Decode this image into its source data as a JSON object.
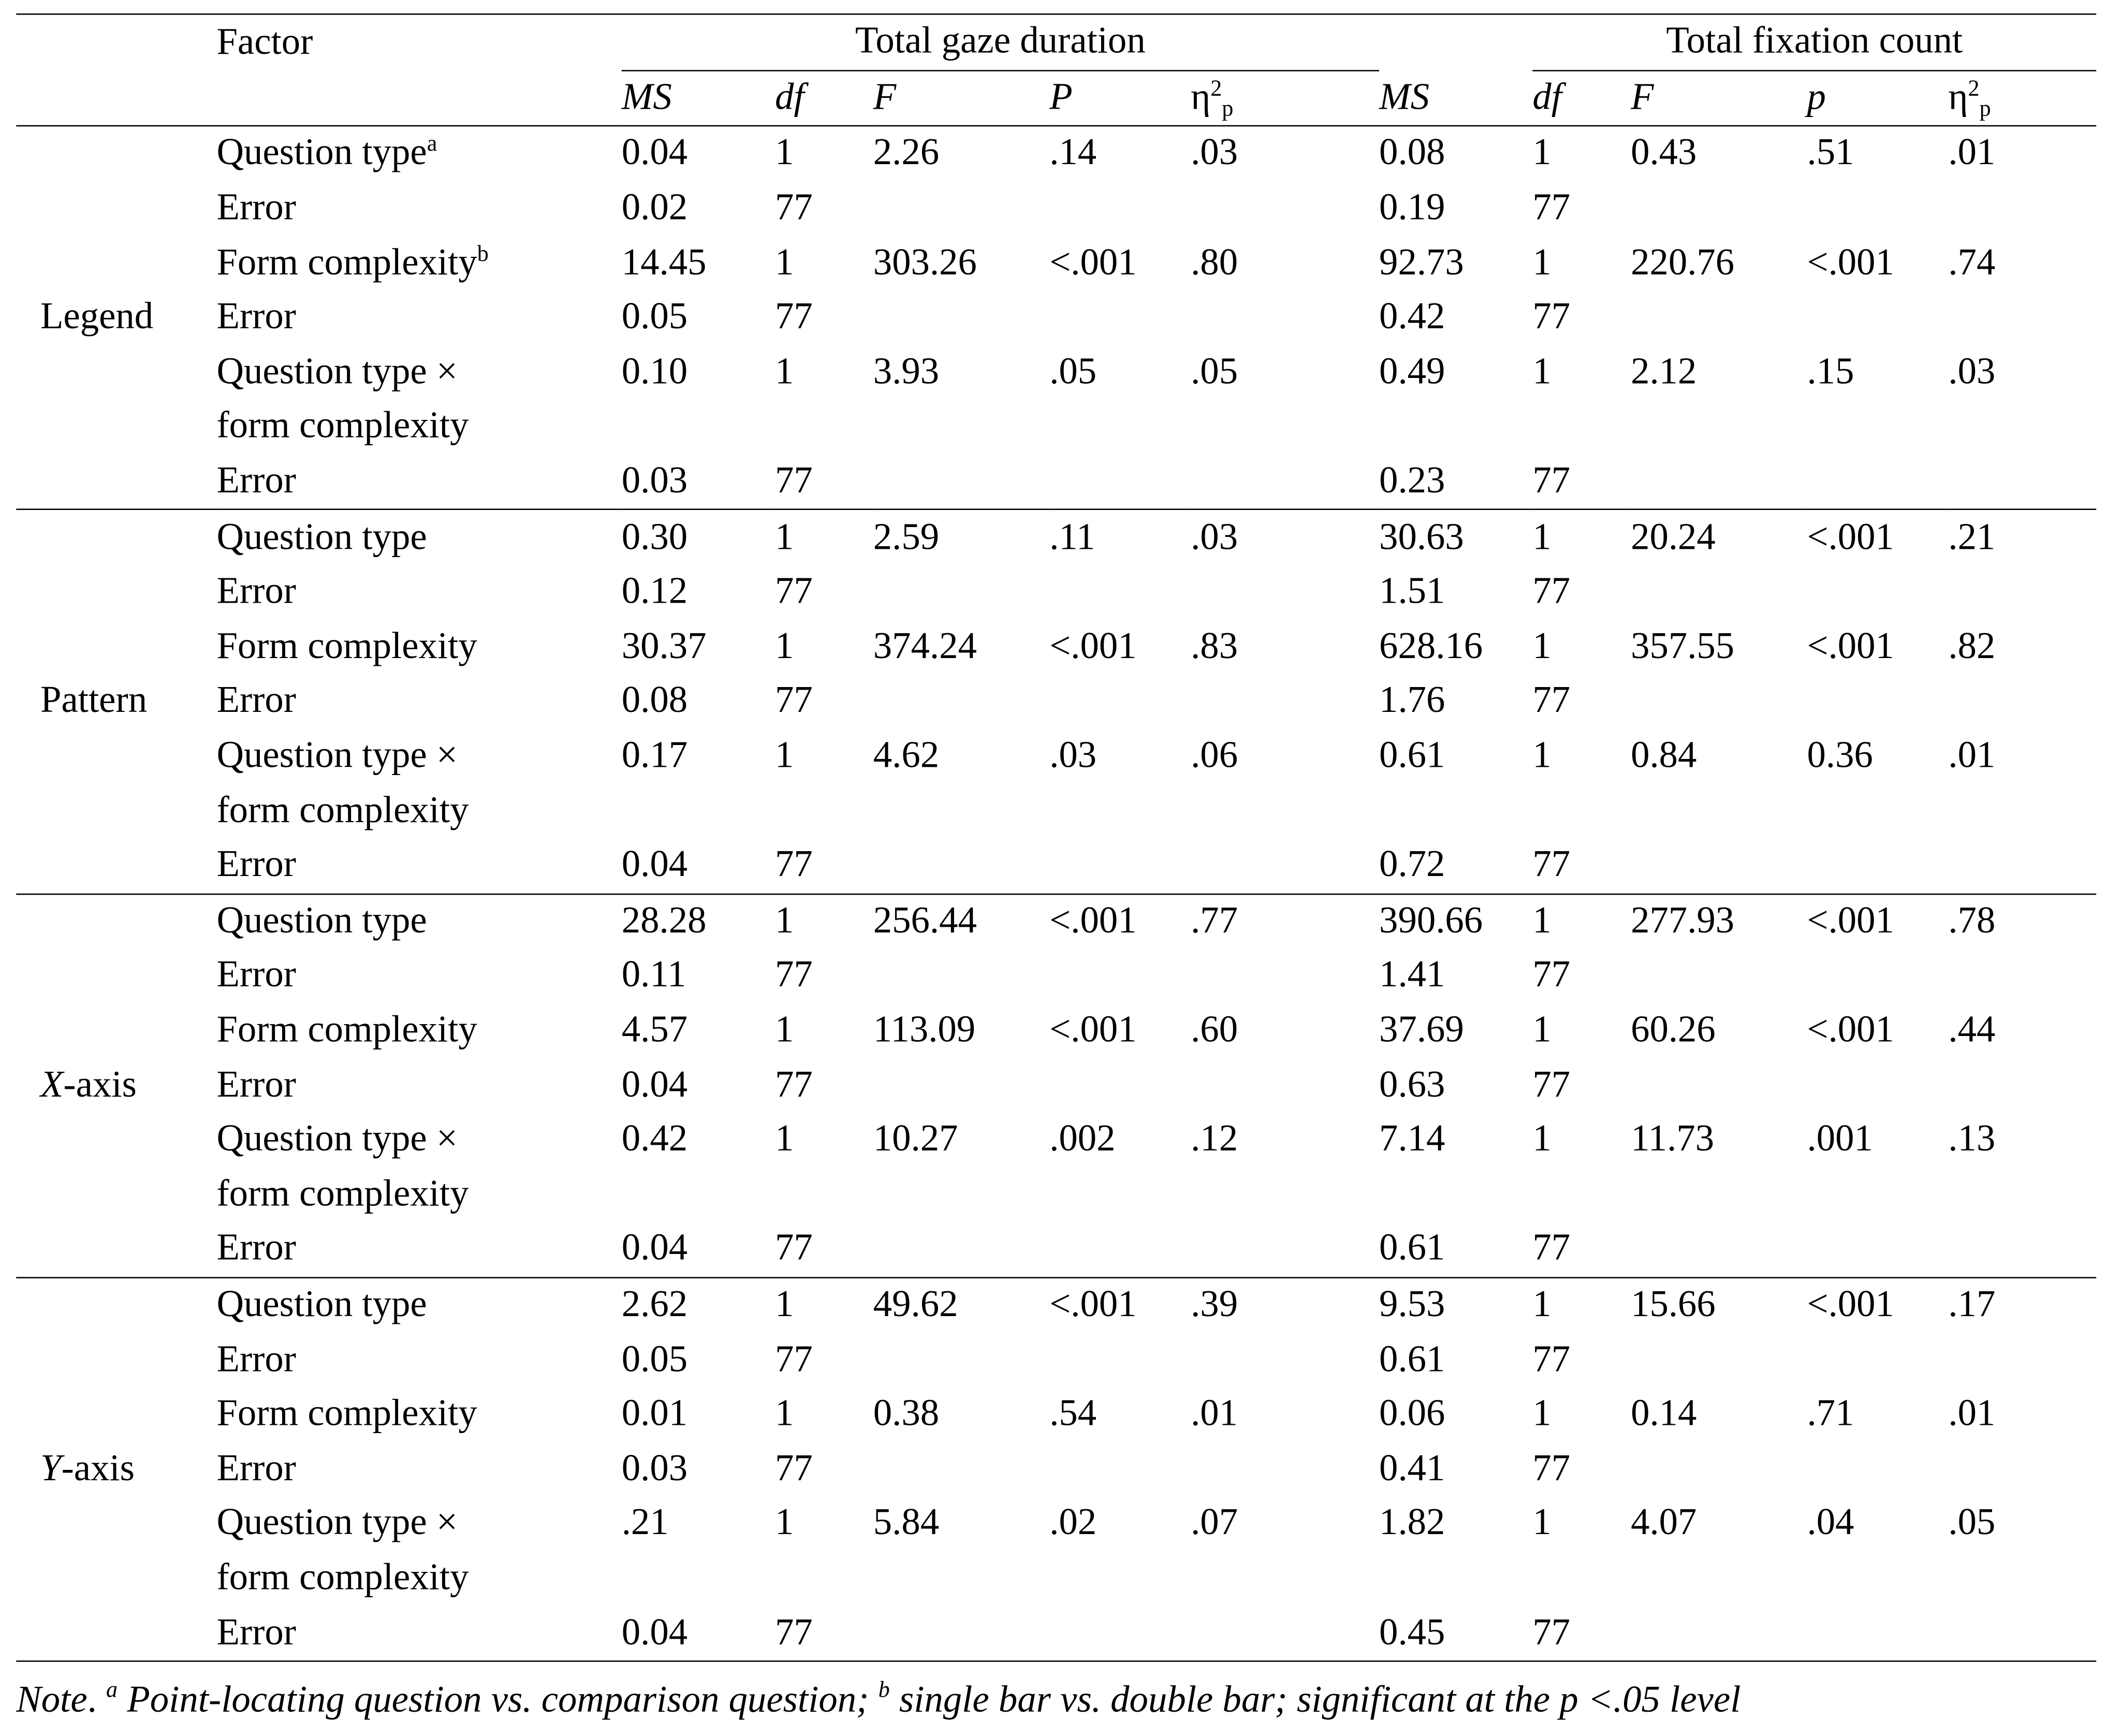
{
  "header": {
    "factor_label": "Factor",
    "gaze_title": "Total gaze duration",
    "fix_title": "Total fixation count",
    "gaze_cols": {
      "ms": "MS",
      "df": "df",
      "f": "F",
      "p": "P",
      "eta": "η",
      "eta_sup": "2",
      "eta_sub": "p"
    },
    "fix_cols": {
      "ms": "MS",
      "df": "df",
      "f": "F",
      "p": "p",
      "eta": "η",
      "eta_sup": "2",
      "eta_sub": "p"
    }
  },
  "groups": [
    {
      "name": "Legend",
      "rows": [
        {
          "factor": "Question type",
          "sup": "a",
          "g": [
            "0.04",
            "1",
            "2.26",
            ".14",
            ".03"
          ],
          "f": [
            "0.08",
            "1",
            "0.43",
            ".51",
            ".01"
          ]
        },
        {
          "factor": "Error",
          "sup": "",
          "g": [
            "0.02",
            "77",
            "",
            "",
            ""
          ],
          "f": [
            "0.19",
            "77",
            "",
            "",
            ""
          ]
        },
        {
          "factor": "Form complexity",
          "sup": "b",
          "g": [
            "14.45",
            "1",
            "303.26",
            "<.001",
            ".80"
          ],
          "f": [
            "92.73",
            "1",
            "220.76",
            "<.001",
            ".74"
          ]
        },
        {
          "factor": "Error",
          "sup": "",
          "g": [
            "0.05",
            "77",
            "",
            "",
            ""
          ],
          "f": [
            "0.42",
            "77",
            "",
            "",
            ""
          ]
        },
        {
          "factor": "Question type ×",
          "sup": "",
          "g": [
            "0.10",
            "1",
            "3.93",
            ".05",
            ".05"
          ],
          "f": [
            "0.49",
            "1",
            "2.12",
            ".15",
            ".03"
          ]
        },
        {
          "factor": "form complexity",
          "sup": "",
          "g": [
            "",
            "",
            "",
            "",
            ""
          ],
          "f": [
            "",
            "",
            "",
            "",
            ""
          ]
        },
        {
          "factor": "Error",
          "sup": "",
          "g": [
            "0.03",
            "77",
            "",
            "",
            ""
          ],
          "f": [
            "0.23",
            "77",
            "",
            "",
            ""
          ]
        }
      ]
    },
    {
      "name": "Pattern",
      "rows": [
        {
          "factor": "Question type",
          "sup": "",
          "g": [
            "0.30",
            "1",
            "2.59",
            ".11",
            ".03"
          ],
          "f": [
            "30.63",
            "1",
            "20.24",
            "<.001",
            ".21"
          ]
        },
        {
          "factor": "Error",
          "sup": "",
          "g": [
            "0.12",
            "77",
            "",
            "",
            ""
          ],
          "f": [
            "1.51",
            "77",
            "",
            "",
            ""
          ]
        },
        {
          "factor": "Form complexity",
          "sup": "",
          "g": [
            "30.37",
            "1",
            "374.24",
            "<.001",
            ".83"
          ],
          "f": [
            "628.16",
            "1",
            "357.55",
            "<.001",
            ".82"
          ]
        },
        {
          "factor": "Error",
          "sup": "",
          "g": [
            "0.08",
            "77",
            "",
            "",
            ""
          ],
          "f": [
            "1.76",
            "77",
            "",
            "",
            ""
          ]
        },
        {
          "factor": "Question type ×",
          "sup": "",
          "g": [
            "0.17",
            "1",
            "4.62",
            ".03",
            ".06"
          ],
          "f": [
            "0.61",
            "1",
            "0.84",
            "0.36",
            ".01"
          ]
        },
        {
          "factor": "form complexity",
          "sup": "",
          "g": [
            "",
            "",
            "",
            "",
            ""
          ],
          "f": [
            "",
            "",
            "",
            "",
            ""
          ]
        },
        {
          "factor": "Error",
          "sup": "",
          "g": [
            "0.04",
            "77",
            "",
            "",
            ""
          ],
          "f": [
            "0.72",
            "77",
            "",
            "",
            ""
          ]
        }
      ]
    },
    {
      "name_letter": "X",
      "name_rest": "-axis",
      "rows": [
        {
          "factor": "Question type",
          "sup": "",
          "g": [
            "28.28",
            "1",
            "256.44",
            "<.001",
            ".77"
          ],
          "f": [
            "390.66",
            "1",
            "277.93",
            "<.001",
            ".78"
          ]
        },
        {
          "factor": "Error",
          "sup": "",
          "g": [
            "0.11",
            "77",
            "",
            "",
            ""
          ],
          "f": [
            "1.41",
            "77",
            "",
            "",
            ""
          ]
        },
        {
          "factor": "Form complexity",
          "sup": "",
          "g": [
            "4.57",
            "1",
            "113.09",
            "<.001",
            ".60"
          ],
          "f": [
            "37.69",
            "1",
            "60.26",
            "<.001",
            ".44"
          ]
        },
        {
          "factor": "Error",
          "sup": "",
          "g": [
            "0.04",
            "77",
            "",
            "",
            ""
          ],
          "f": [
            "0.63",
            "77",
            "",
            "",
            ""
          ]
        },
        {
          "factor": "Question type ×",
          "sup": "",
          "g": [
            "0.42",
            "1",
            "10.27",
            ".002",
            ".12"
          ],
          "f": [
            "7.14",
            "1",
            "11.73",
            ".001",
            ".13"
          ]
        },
        {
          "factor": "form complexity",
          "sup": "",
          "g": [
            "",
            "",
            "",
            "",
            ""
          ],
          "f": [
            "",
            "",
            "",
            "",
            ""
          ]
        },
        {
          "factor": "Error",
          "sup": "",
          "g": [
            "0.04",
            "77",
            "",
            "",
            ""
          ],
          "f": [
            "0.61",
            "77",
            "",
            "",
            ""
          ]
        }
      ]
    },
    {
      "name_letter": "Y",
      "name_rest": "-axis",
      "rows": [
        {
          "factor": "Question type",
          "sup": "",
          "g": [
            "2.62",
            "1",
            "49.62",
            "<.001",
            ".39"
          ],
          "f": [
            "9.53",
            "1",
            "15.66",
            "<.001",
            ".17"
          ]
        },
        {
          "factor": "Error",
          "sup": "",
          "g": [
            "0.05",
            "77",
            "",
            "",
            ""
          ],
          "f": [
            "0.61",
            "77",
            "",
            "",
            ""
          ]
        },
        {
          "factor": "Form complexity",
          "sup": "",
          "g": [
            "0.01",
            "1",
            "0.38",
            ".54",
            ".01"
          ],
          "f": [
            "0.06",
            "1",
            "0.14",
            ".71",
            ".01"
          ]
        },
        {
          "factor": "Error",
          "sup": "",
          "g": [
            "0.03",
            "77",
            "",
            "",
            ""
          ],
          "f": [
            "0.41",
            "77",
            "",
            "",
            ""
          ]
        },
        {
          "factor": "Question type ×",
          "sup": "",
          "g": [
            ".21",
            "1",
            "5.84",
            ".02",
            ".07"
          ],
          "f": [
            "1.82",
            "1",
            "4.07",
            ".04",
            ".05"
          ]
        },
        {
          "factor": "form complexity",
          "sup": "",
          "g": [
            "",
            "",
            "",
            "",
            ""
          ],
          "f": [
            "",
            "",
            "",
            "",
            ""
          ]
        },
        {
          "factor": "Error",
          "sup": "",
          "g": [
            "0.04",
            "77",
            "",
            "",
            ""
          ],
          "f": [
            "0.45",
            "77",
            "",
            "",
            ""
          ]
        }
      ]
    }
  ],
  "note": {
    "lead": "Note",
    "dot": ".",
    "sup_a": "a",
    "text_a": " Point-locating question vs. comparison question; ",
    "sup_b": "b",
    "text_b": " single bar vs. double bar; significant at the p <.05 level"
  }
}
